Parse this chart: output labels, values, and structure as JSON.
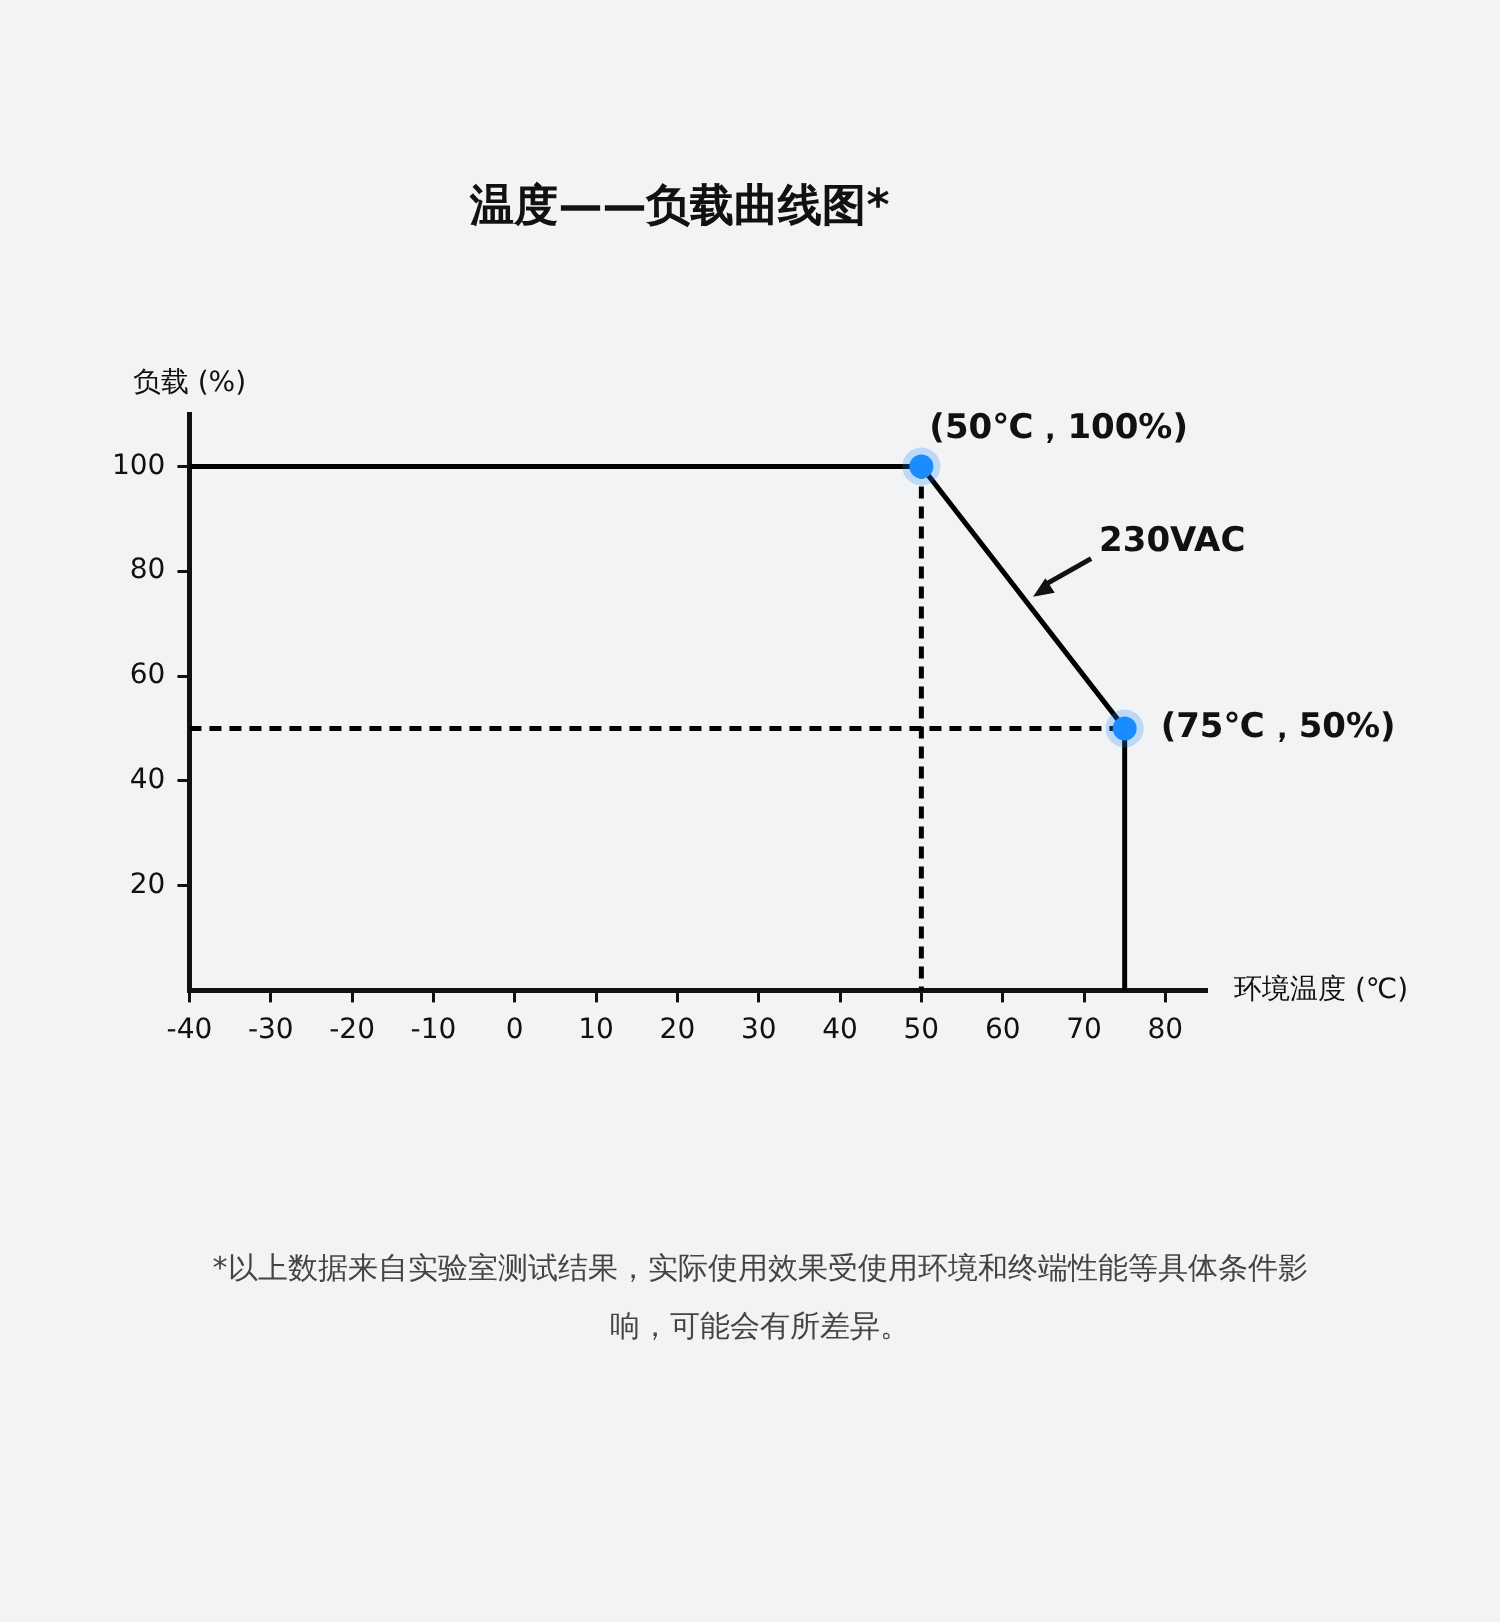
{
  "chart_data": {
    "type": "line",
    "title": "温度——负载曲线图*",
    "xlabel": "环境温度 (℃)",
    "ylabel": "负载 (%)",
    "xlim": [
      -40,
      85
    ],
    "ylim": [
      0,
      110
    ],
    "xticks": [
      -40,
      -30,
      -20,
      -10,
      0,
      10,
      20,
      30,
      40,
      50,
      60,
      70,
      80
    ],
    "yticks": [
      20,
      40,
      60,
      80,
      100
    ],
    "series": [
      {
        "color": "#000000",
        "x": [
          -40,
          50,
          75,
          75
        ],
        "values": [
          100,
          100,
          50,
          0
        ],
        "marker": "none",
        "line_style": "solid"
      },
      {
        "type": "line",
        "color": "#000000",
        "x": [
          50,
          50
        ],
        "values": [
          100,
          0
        ],
        "marker": "none",
        "line_style": "dashed"
      },
      {
        "type": "line",
        "color": "#000000",
        "x": [
          -40,
          75
        ],
        "values": [
          50,
          50
        ],
        "marker": "none",
        "line_style": "dashed"
      },
      {
        "type": "scatter",
        "color": "#1a8cff",
        "x": [
          50,
          75
        ],
        "values": [
          100,
          50
        ],
        "marker": "circle"
      }
    ],
    "annotations": [
      {
        "text": "(50℃，100%)",
        "x": 50,
        "y": 100
      },
      {
        "text": "(75℃，50%)",
        "x": 75,
        "y": 50
      },
      {
        "text": "230VAC",
        "x": 63,
        "y": 74
      },
      "*以上数据来自实验室测试结果，实际使用效果受使用环境和终端性能等具体条件影响，可能会有所差异。"
    ]
  }
}
